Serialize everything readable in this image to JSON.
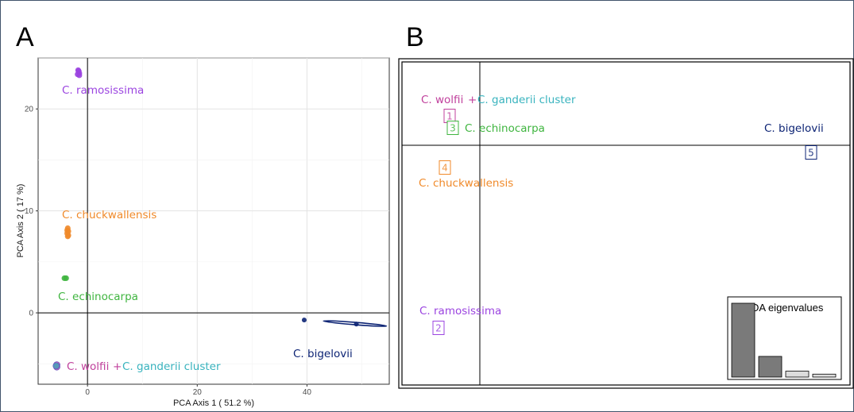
{
  "panels": {
    "a": {
      "letter": "A"
    },
    "b": {
      "letter": "B"
    }
  },
  "colors": {
    "ramosissima": "#9b44e0",
    "chuckwallensis": "#f08a2a",
    "echinocarpa": "#3fb53f",
    "wolfii": "#c0409c",
    "ganderii": "#38b3be",
    "bigelovii": "#0c2374",
    "axis_line": "#000000",
    "grid": "#e8e8e8"
  },
  "chart_data": [
    {
      "type": "scatter",
      "panel": "A",
      "xlabel": "PCA Axis 1 ( 51.2 %)",
      "ylabel": "PCA Axis 2 ( 17 %)",
      "xlim": [
        -9,
        55
      ],
      "ylim": [
        -7,
        25
      ],
      "x_ticks": [
        0,
        20,
        40
      ],
      "y_ticks": [
        0,
        10,
        20
      ],
      "grid": true,
      "series": [
        {
          "name": "C. ramosissima",
          "label": "C. ramosissima",
          "color_key": "ramosissima",
          "points": [
            [
              -1.8,
              23.4
            ],
            [
              -1.6,
              23.7
            ],
            [
              -1.5,
              23.5
            ],
            [
              -1.7,
              23.8
            ],
            [
              -1.5,
              23.3
            ]
          ]
        },
        {
          "name": "C. chuckwallensis",
          "label": "C. chuckwallensis",
          "color_key": "chuckwallensis",
          "points": [
            [
              -3.6,
              8.3
            ],
            [
              -3.5,
              8.0
            ],
            [
              -3.7,
              7.8
            ],
            [
              -3.6,
              7.5
            ],
            [
              -3.5,
              7.6
            ],
            [
              -3.7,
              8.1
            ]
          ]
        },
        {
          "name": "C. echinocarpa",
          "label": "C. echinocarpa",
          "color_key": "echinocarpa",
          "points": [
            [
              -4.2,
              3.4
            ],
            [
              -3.9,
              3.4
            ]
          ]
        },
        {
          "name": "C. wolfii",
          "label": "C. wolfii",
          "color_key": "wolfii",
          "points": [
            [
              -5.6,
              -5.1
            ],
            [
              -5.6,
              -5.3
            ]
          ]
        },
        {
          "name": "C. ganderii cluster",
          "label": "C. ganderii cluster",
          "color_key": "ganderii",
          "points": [
            [
              -5.7,
              -5.2
            ]
          ]
        },
        {
          "name": "C. bigelovii",
          "label": "C. bigelovii",
          "color_key": "bigelovii",
          "points": [
            [
              39.5,
              -0.7
            ],
            [
              49,
              -1.1
            ]
          ],
          "ellipse": {
            "center": [
              49,
              -1.1
            ],
            "from": [
              43,
              -0.8
            ],
            "to": [
              54.5,
              -1.3
            ]
          }
        }
      ],
      "annotations": [
        {
          "text": "C. ramosissima",
          "color_key": "ramosissima"
        },
        {
          "text": "C. chuckwallensis",
          "color_key": "chuckwallensis"
        },
        {
          "text": "C. echinocarpa",
          "color_key": "echinocarpa"
        },
        {
          "text": "C. wolfii",
          "color_key": "wolfii"
        },
        {
          "text": "+",
          "color_key": "wolfii"
        },
        {
          "text": "C. ganderii cluster",
          "color_key": "ganderii"
        },
        {
          "text": "C. bigelovii",
          "color_key": "bigelovii"
        }
      ]
    },
    {
      "type": "scatter",
      "panel": "B",
      "title": "",
      "groups": [
        {
          "id": "1",
          "name": "C. wolfii",
          "color_key": "wolfii"
        },
        {
          "id": "2",
          "name": "C. ramosissima",
          "color_key": "ramosissima"
        },
        {
          "id": "3",
          "name": "C. echinocarpa",
          "color_key": "echinocarpa"
        },
        {
          "id": "4",
          "name": "C. chuckwallensis",
          "color_key": "chuckwallensis"
        },
        {
          "id": "5",
          "name": "C. bigelovii",
          "color_key": "bigelovii"
        }
      ],
      "annotations": [
        {
          "text": "C. wolfii",
          "color_key": "wolfii"
        },
        {
          "text": "+",
          "color_key": "wolfii"
        },
        {
          "text": "C. ganderii cluster",
          "color_key": "ganderii"
        },
        {
          "text": "C. echinocarpa",
          "color_key": "echinocarpa"
        },
        {
          "text": "C. chuckwallensis",
          "color_key": "chuckwallensis"
        },
        {
          "text": "C. ramosissima",
          "color_key": "ramosissima"
        },
        {
          "text": "C. bigelovii",
          "color_key": "bigelovii"
        }
      ],
      "inset": {
        "type": "bar",
        "title": "DA eigenvalues",
        "values": [
          1.0,
          0.28,
          0.08,
          0.04
        ],
        "fills": [
          "#7a7a7a",
          "#7a7a7a",
          "#dcdcdc",
          "#dcdcdc"
        ]
      }
    }
  ]
}
